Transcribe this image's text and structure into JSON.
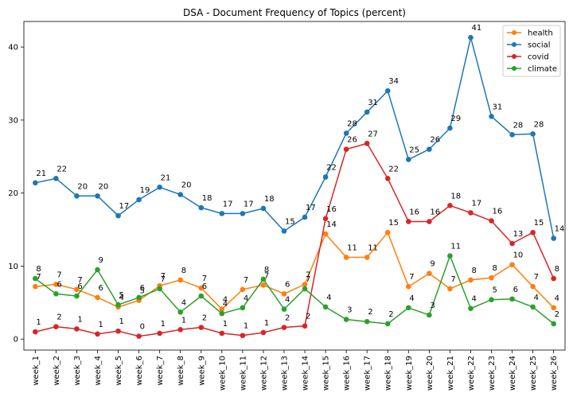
{
  "chart_data": {
    "type": "line",
    "title": "DSA - Document Frequency of Topics (percent)",
    "xlabel": "",
    "ylabel": "",
    "ylim": [
      -1.5,
      43.5
    ],
    "yticks": [
      "0",
      "10",
      "20",
      "30",
      "40"
    ],
    "grid": false,
    "legend_position": "top-right",
    "categories": [
      "week_1",
      "week_2",
      "week_3",
      "week_4",
      "week_5",
      "week_6",
      "week_7",
      "week_8",
      "week_9",
      "week_10",
      "week_11",
      "week_12",
      "week_13",
      "week_14",
      "week_15",
      "week_16",
      "week_17",
      "week_18",
      "week_19",
      "week_20",
      "week_21",
      "week_22",
      "week_23",
      "week_24",
      "week_25",
      "week_26"
    ],
    "series": [
      {
        "name": "health",
        "color": "#ff7f0e",
        "values": [
          7.2,
          7.5,
          6.8,
          5.7,
          4.4,
          5.3,
          7.3,
          8.1,
          7.0,
          4.1,
          6.8,
          7.4,
          6.2,
          7.5,
          14.4,
          11.2,
          11.2,
          14.6,
          7.2,
          9.0,
          6.9,
          8.1,
          8.4,
          10.2,
          7.2,
          4.3
        ],
        "labels": [
          "7",
          "7",
          "7",
          "6",
          "4",
          "5",
          "7",
          "8",
          "7",
          "4",
          "7",
          "7",
          "6",
          "7",
          "14",
          "11",
          "11",
          "15",
          "7",
          "9",
          "7",
          "8",
          "8",
          "10",
          "7",
          "4"
        ]
      },
      {
        "name": "social",
        "color": "#1f77b4",
        "values": [
          21.4,
          22.0,
          19.6,
          19.6,
          16.9,
          19.1,
          20.8,
          19.8,
          18.0,
          17.2,
          17.2,
          17.9,
          14.8,
          16.7,
          22.2,
          28.2,
          31.1,
          34.0,
          24.6,
          26.0,
          28.9,
          41.3,
          30.5,
          28.0,
          28.1,
          13.8
        ],
        "labels": [
          "21",
          "22",
          "20",
          "20",
          "17",
          "19",
          "21",
          "20",
          "18",
          "17",
          "17",
          "18",
          "15",
          "17",
          "22",
          "28",
          "31",
          "34",
          "25",
          "26",
          "29",
          "41",
          "31",
          "28",
          "28",
          "14"
        ]
      },
      {
        "name": "covid",
        "color": "#d62728",
        "values": [
          1.0,
          1.7,
          1.4,
          0.7,
          1.1,
          0.4,
          0.8,
          1.3,
          1.6,
          0.8,
          0.5,
          0.9,
          1.6,
          1.8,
          16.5,
          26.0,
          26.8,
          22.0,
          16.1,
          16.1,
          18.3,
          17.3,
          16.2,
          13.1,
          14.6,
          8.3
        ],
        "labels": [
          "1",
          "2",
          "1",
          "1",
          "1",
          "0",
          "1",
          "1",
          "2",
          "1",
          "1",
          "1",
          "2",
          "2",
          "16",
          "26",
          "27",
          "22",
          "16",
          "16",
          "18",
          "17",
          "16",
          "13",
          "15",
          "8"
        ]
      },
      {
        "name": "climate",
        "color": "#2ca02c",
        "values": [
          8.3,
          6.2,
          5.9,
          9.5,
          4.7,
          5.7,
          6.9,
          3.7,
          5.9,
          3.5,
          4.3,
          8.2,
          4.1,
          6.9,
          4.4,
          2.7,
          2.4,
          2.1,
          4.3,
          3.3,
          11.4,
          4.2,
          5.4,
          5.5,
          4.4,
          2.1
        ],
        "labels": [
          "8",
          "6",
          "6",
          "9",
          "5",
          "6",
          "7",
          "4",
          "6",
          "4",
          "4",
          "8",
          "4",
          "7",
          "4",
          "3",
          "2",
          "2",
          "4",
          "3",
          "11",
          "4",
          "5",
          "6",
          "4",
          "2"
        ]
      }
    ]
  }
}
